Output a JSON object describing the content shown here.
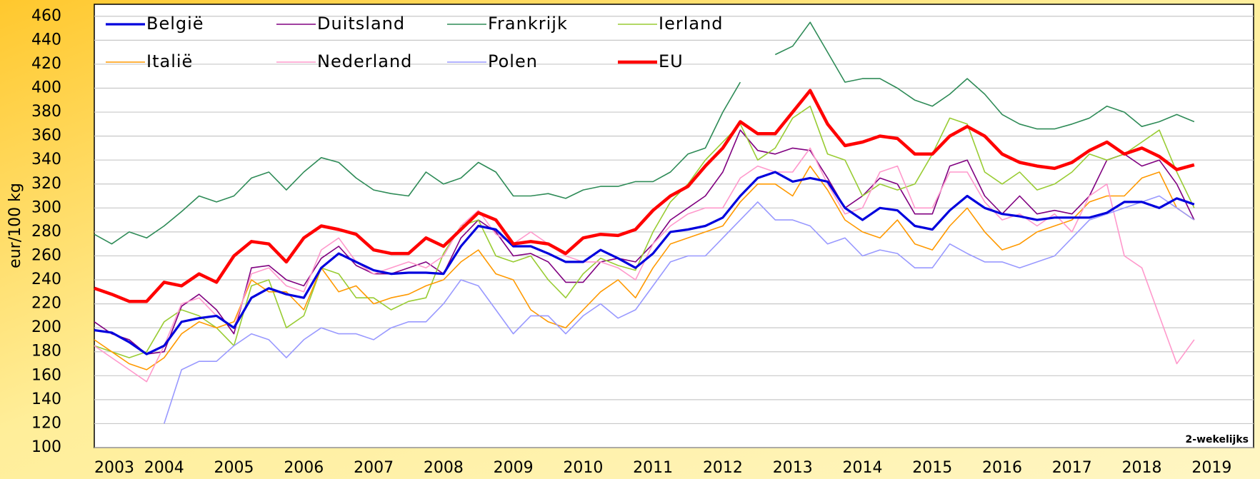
{
  "chart_data": {
    "type": "line",
    "ylabel": "eur/100 kg",
    "annotation": "2-wekelijks",
    "ylim": [
      100,
      470
    ],
    "yticks": [
      100,
      120,
      140,
      160,
      180,
      200,
      220,
      240,
      260,
      280,
      300,
      320,
      340,
      360,
      380,
      400,
      420,
      440,
      460
    ],
    "xlim": [
      2003,
      2019.6
    ],
    "xticks": [
      2003,
      2004,
      2005,
      2006,
      2007,
      2008,
      2009,
      2010,
      2011,
      2012,
      2013,
      2014,
      2015,
      2016,
      2017,
      2018,
      2019
    ],
    "grid": true,
    "legend": "upper-left",
    "x": [
      2003,
      2003.25,
      2003.5,
      2003.75,
      2004,
      2004.25,
      2004.5,
      2004.75,
      2005,
      2005.25,
      2005.5,
      2005.75,
      2006,
      2006.25,
      2006.5,
      2006.75,
      2007,
      2007.25,
      2007.5,
      2007.75,
      2008,
      2008.25,
      2008.5,
      2008.75,
      2009,
      2009.25,
      2009.5,
      2009.75,
      2010,
      2010.25,
      2010.5,
      2010.75,
      2011,
      2011.25,
      2011.5,
      2011.75,
      2012,
      2012.25,
      2012.5,
      2012.75,
      2013,
      2013.25,
      2013.5,
      2013.75,
      2014,
      2014.25,
      2014.5,
      2014.75,
      2015,
      2015.25,
      2015.5,
      2015.75,
      2016,
      2016.25,
      2016.5,
      2016.75,
      2017,
      2017.25,
      2017.5,
      2017.75,
      2018,
      2018.25,
      2018.5,
      2018.75
    ],
    "series": [
      {
        "name": "Duitsland",
        "color": "#800080",
        "width": 1.6,
        "values": [
          205,
          195,
          190,
          178,
          180,
          218,
          228,
          215,
          195,
          250,
          252,
          240,
          235,
          258,
          268,
          252,
          245,
          245,
          250,
          255,
          245,
          275,
          290,
          280,
          260,
          262,
          255,
          238,
          238,
          255,
          258,
          255,
          270,
          290,
          300,
          310,
          330,
          365,
          348,
          345,
          350,
          348,
          325,
          300,
          310,
          325,
          320,
          295,
          295,
          335,
          340,
          310,
          295,
          310,
          295,
          298,
          295,
          310,
          340,
          345,
          335,
          340,
          320,
          290
        ]
      },
      {
        "name": "Frankrijk",
        "color": "#2e8b57",
        "width": 1.6,
        "values": [
          278,
          270,
          280,
          275,
          285,
          297,
          310,
          305,
          310,
          325,
          330,
          315,
          330,
          342,
          338,
          325,
          315,
          312,
          310,
          330,
          320,
          325,
          338,
          330,
          310,
          310,
          312,
          308,
          315,
          318,
          318,
          322,
          322,
          330,
          345,
          350,
          380,
          405,
          null,
          428,
          435,
          455,
          430,
          405,
          408,
          408,
          400,
          390,
          385,
          395,
          408,
          395,
          378,
          370,
          366,
          366,
          370,
          375,
          385,
          380,
          368,
          372,
          378,
          372
        ]
      },
      {
        "name": "Ierland",
        "color": "#99cc33",
        "width": 1.6,
        "values": [
          185,
          180,
          175,
          180,
          205,
          215,
          210,
          200,
          185,
          235,
          240,
          200,
          210,
          250,
          245,
          225,
          225,
          215,
          222,
          225,
          262,
          285,
          290,
          260,
          255,
          260,
          240,
          225,
          245,
          258,
          252,
          248,
          280,
          305,
          320,
          340,
          355,
          370,
          340,
          350,
          375,
          385,
          345,
          340,
          310,
          320,
          315,
          320,
          345,
          375,
          370,
          330,
          320,
          330,
          315,
          320,
          330,
          345,
          340,
          345,
          355,
          365,
          330,
          300
        ]
      },
      {
        "name": "Italië",
        "color": "#ff9900",
        "width": 1.6,
        "values": [
          190,
          180,
          170,
          165,
          175,
          195,
          205,
          200,
          205,
          240,
          230,
          230,
          215,
          250,
          230,
          235,
          220,
          225,
          228,
          235,
          240,
          255,
          265,
          245,
          240,
          215,
          205,
          200,
          215,
          230,
          240,
          225,
          250,
          270,
          275,
          280,
          285,
          305,
          320,
          320,
          310,
          335,
          315,
          290,
          280,
          275,
          290,
          270,
          265,
          285,
          300,
          280,
          265,
          270,
          280,
          285,
          290,
          305,
          310,
          310,
          325,
          330,
          300,
          290
        ]
      },
      {
        "name": "Nederland",
        "color": "#ff99cc",
        "width": 1.6,
        "values": [
          185,
          175,
          165,
          155,
          185,
          220,
          225,
          210,
          200,
          245,
          250,
          235,
          230,
          265,
          275,
          255,
          245,
          250,
          255,
          250,
          260,
          285,
          298,
          278,
          270,
          280,
          270,
          260,
          255,
          255,
          250,
          240,
          270,
          285,
          295,
          300,
          300,
          325,
          335,
          330,
          330,
          350,
          320,
          295,
          300,
          330,
          335,
          300,
          300,
          330,
          330,
          305,
          290,
          295,
          285,
          295,
          280,
          310,
          320,
          260,
          250,
          210,
          170,
          190
        ]
      },
      {
        "name": "Polen",
        "color": "#9999ff",
        "width": 1.6,
        "values": [
          null,
          null,
          null,
          null,
          120,
          165,
          172,
          172,
          185,
          195,
          190,
          175,
          190,
          200,
          195,
          195,
          190,
          200,
          205,
          205,
          220,
          240,
          235,
          215,
          195,
          210,
          210,
          195,
          210,
          220,
          208,
          215,
          235,
          255,
          260,
          260,
          275,
          290,
          305,
          290,
          290,
          285,
          270,
          275,
          260,
          265,
          262,
          250,
          250,
          270,
          262,
          255,
          255,
          250,
          255,
          260,
          275,
          290,
          295,
          300,
          305,
          310,
          300,
          290
        ]
      },
      {
        "name": "België",
        "color": "#0000dd",
        "width": 3.2,
        "values": [
          198,
          196,
          188,
          178,
          185,
          205,
          208,
          210,
          200,
          225,
          233,
          228,
          225,
          250,
          262,
          255,
          248,
          245,
          246,
          246,
          245,
          268,
          285,
          282,
          268,
          268,
          262,
          255,
          255,
          265,
          258,
          250,
          262,
          280,
          282,
          285,
          292,
          310,
          325,
          330,
          322,
          325,
          322,
          300,
          290,
          300,
          298,
          285,
          282,
          298,
          310,
          300,
          295,
          293,
          290,
          292,
          292,
          292,
          296,
          305,
          305,
          300,
          308,
          303
        ]
      },
      {
        "name": "EU",
        "color": "#ff0000",
        "width": 4.5,
        "values": [
          233,
          228,
          222,
          222,
          238,
          235,
          245,
          238,
          260,
          272,
          270,
          255,
          275,
          285,
          282,
          278,
          265,
          262,
          262,
          275,
          268,
          282,
          296,
          290,
          270,
          272,
          270,
          262,
          275,
          278,
          277,
          282,
          298,
          310,
          318,
          335,
          350,
          372,
          362,
          362,
          380,
          398,
          370,
          352,
          355,
          360,
          358,
          345,
          345,
          360,
          368,
          360,
          345,
          338,
          335,
          333,
          338,
          348,
          355,
          345,
          350,
          343,
          332,
          336
        ]
      }
    ],
    "legend_order": [
      "België",
      "Duitsland",
      "Frankrijk",
      "Ierland",
      "Italië",
      "Nederland",
      "Polen",
      "EU"
    ]
  }
}
